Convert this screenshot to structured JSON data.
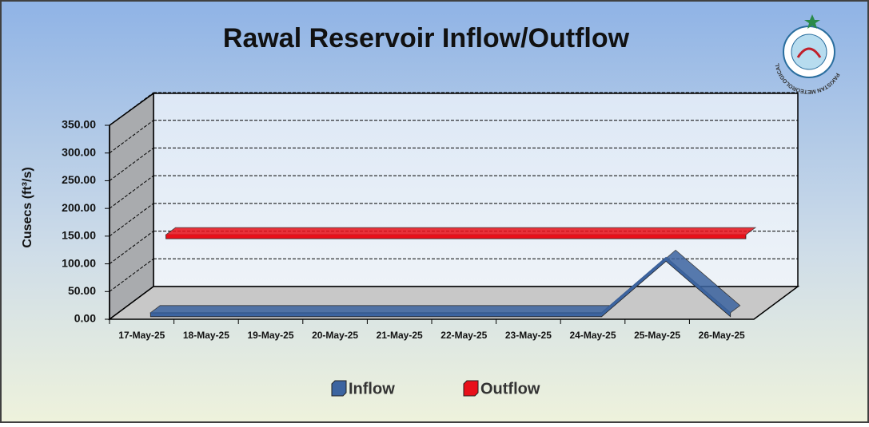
{
  "chart_data": {
    "type": "line3d",
    "title": "Rawal Reservoir Inflow/Outflow",
    "y_label": "Cusecs (ft³/s)",
    "logo_text": "PAKISTAN METEOROLOGICAL DEPARTMENT",
    "categories": [
      "17-May-25",
      "18-May-25",
      "19-May-25",
      "20-May-25",
      "21-May-25",
      "22-May-25",
      "23-May-25",
      "24-May-25",
      "25-May-25",
      "26-May-25"
    ],
    "series": [
      {
        "name": "Inflow",
        "color": "#3c64a0",
        "values": [
          0,
          0,
          0,
          0,
          0,
          0,
          0,
          0,
          100,
          0
        ]
      },
      {
        "name": "Outflow",
        "color": "#e8101a",
        "values": [
          120,
          120,
          120,
          120,
          120,
          120,
          120,
          120,
          120,
          120
        ]
      }
    ],
    "ylim": [
      0,
      350
    ],
    "yticks": [
      {
        "value": 0,
        "label": "0.00"
      },
      {
        "value": 50,
        "label": "50.00"
      },
      {
        "value": 100,
        "label": "100.00"
      },
      {
        "value": 150,
        "label": "150.00"
      },
      {
        "value": 200,
        "label": "200.00"
      },
      {
        "value": 250,
        "label": "250.00"
      },
      {
        "value": 300,
        "label": "300.00"
      },
      {
        "value": 350,
        "label": "350.00"
      }
    ],
    "grid": true,
    "legend": "bottom"
  }
}
